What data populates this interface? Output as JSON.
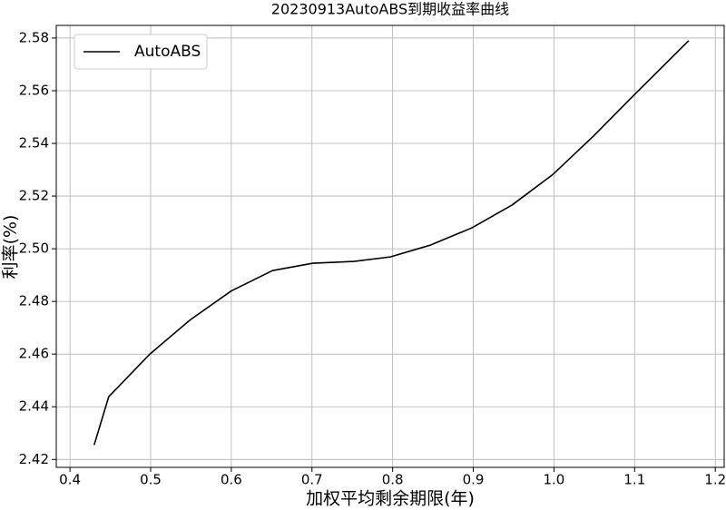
{
  "chart_data": {
    "type": "line",
    "title": "20230913AutoABS到期收益率曲线",
    "x_label": "加权平均剩余期限(年)",
    "y_label": "利率(%)",
    "x": [
      0.43,
      0.448,
      0.499,
      0.549,
      0.6,
      0.651,
      0.701,
      0.752,
      0.797,
      0.847,
      0.898,
      0.948,
      0.999,
      1.049,
      1.1,
      1.167
    ],
    "series": [
      {
        "name": "AutoABS",
        "color": "#000000",
        "values": [
          2.4255,
          2.4438,
          2.46,
          2.473,
          2.484,
          2.4917,
          2.4945,
          2.4952,
          2.4969,
          2.5014,
          2.5079,
          2.5166,
          2.5283,
          2.5428,
          2.5586,
          2.579
        ]
      }
    ],
    "xlim": [
      0.383,
      1.211
    ],
    "ylim": [
      2.417,
      2.5848
    ],
    "xticks": [
      0.4,
      0.5,
      0.6,
      0.7,
      0.8,
      0.9,
      {
        "value": 1,
        "label": "1.0"
      },
      1.1,
      1.2
    ],
    "yticks": [
      2.42,
      2.44,
      2.46,
      2.48,
      {
        "value": 2.5,
        "label": "2.50"
      },
      2.52,
      2.54,
      2.56,
      2.58
    ],
    "grid": true,
    "legend": "upper left"
  }
}
